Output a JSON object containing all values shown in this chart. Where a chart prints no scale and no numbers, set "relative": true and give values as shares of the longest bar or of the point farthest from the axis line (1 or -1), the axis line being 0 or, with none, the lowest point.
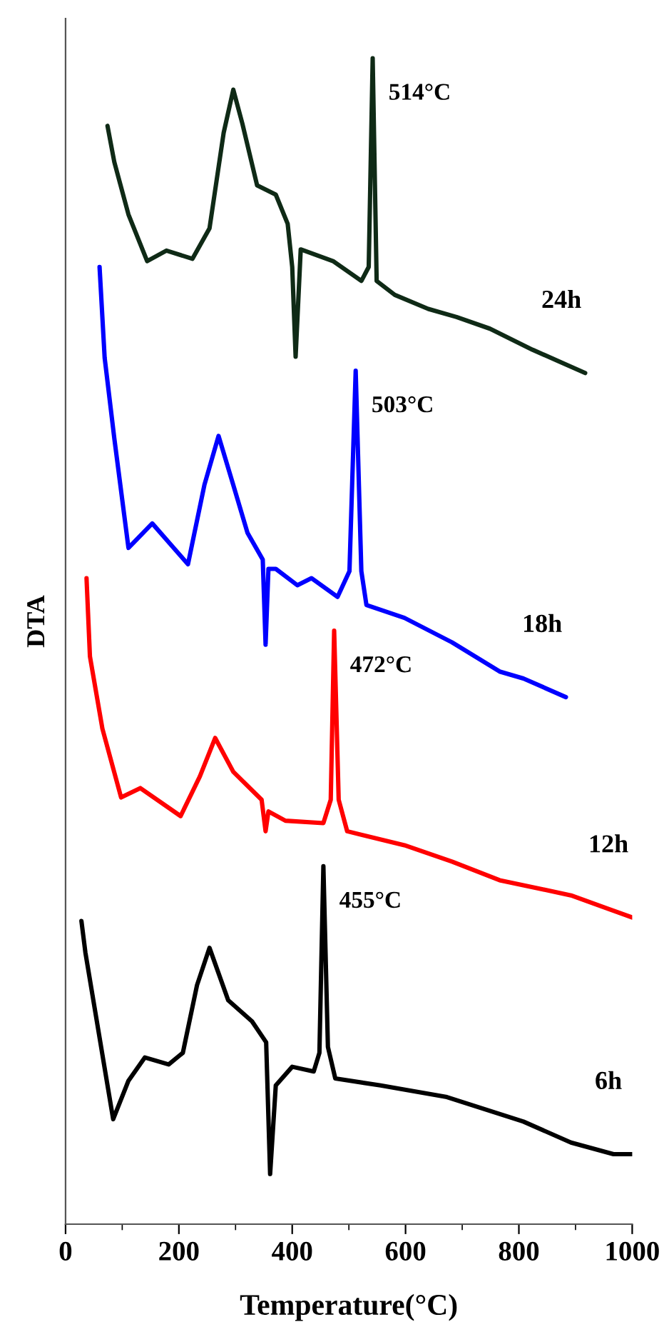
{
  "chart_data": {
    "type": "line",
    "relative": true,
    "xlabel": "Temperature(°C)",
    "ylabel": "DTA",
    "xlim": [
      0,
      1000
    ],
    "xticks": [
      0,
      {
        "value": 100,
        "label": null
      },
      200,
      {
        "value": 300,
        "label": null
      },
      400,
      {
        "value": 500,
        "label": null
      },
      600,
      {
        "value": 700,
        "label": null
      },
      800,
      {
        "value": 900,
        "label": null
      },
      1000
    ],
    "grid": false,
    "legend": false,
    "marker": "none",
    "line_style": "solid",
    "tick_labels": "x",
    "series": [
      {
        "name": "24h",
        "color": "#0f2a16",
        "x": [
          74,
          86,
          111,
          144,
          178,
          224,
          254,
          279,
          296,
          312,
          338,
          371,
          392,
          400,
          406,
          415,
          472,
          522,
          535,
          542,
          549,
          581,
          640,
          690,
          749,
          824,
          917
        ],
        "values": [
          0.942,
          0.911,
          0.866,
          0.826,
          0.835,
          0.828,
          0.854,
          0.936,
          0.973,
          0.944,
          0.891,
          0.883,
          0.858,
          0.821,
          0.744,
          0.836,
          0.826,
          0.809,
          0.821,
          1.0,
          0.809,
          0.797,
          0.785,
          0.778,
          0.768,
          0.75,
          0.73
        ]
      },
      {
        "name": "18h",
        "color": "#0000ff",
        "x": [
          60,
          69,
          86,
          111,
          153,
          216,
          245,
          270,
          296,
          321,
          348,
          353,
          358,
          371,
          409,
          434,
          480,
          501,
          512,
          522,
          531,
          598,
          682,
          766,
          808,
          883
        ],
        "values": [
          0.821,
          0.743,
          0.674,
          0.58,
          0.601,
          0.566,
          0.634,
          0.676,
          0.634,
          0.593,
          0.57,
          0.497,
          0.562,
          0.562,
          0.548,
          0.554,
          0.538,
          0.56,
          0.732,
          0.56,
          0.531,
          0.52,
          0.499,
          0.474,
          0.468,
          0.452
        ]
      },
      {
        "name": "12h",
        "color": "#ff0000",
        "x": [
          37,
          43,
          65,
          98,
          132,
          203,
          237,
          264,
          296,
          346,
          353,
          358,
          388,
          455,
          468,
          474,
          482,
          497,
          598,
          682,
          766,
          892,
          1000
        ],
        "values": [
          0.554,
          0.487,
          0.425,
          0.366,
          0.374,
          0.35,
          0.384,
          0.417,
          0.388,
          0.364,
          0.337,
          0.354,
          0.346,
          0.344,
          0.364,
          0.509,
          0.364,
          0.337,
          0.325,
          0.311,
          0.295,
          0.282,
          0.263
        ]
      },
      {
        "name": "6h",
        "color": "#000000",
        "x": [
          28,
          35,
          84,
          111,
          140,
          182,
          207,
          232,
          254,
          287,
          329,
          354,
          361,
          371,
          400,
          438,
          448,
          455,
          463,
          476,
          556,
          673,
          808,
          892,
          967,
          1000
        ],
        "values": [
          0.26,
          0.233,
          0.09,
          0.123,
          0.143,
          0.137,
          0.147,
          0.205,
          0.237,
          0.192,
          0.174,
          0.156,
          0.043,
          0.119,
          0.135,
          0.131,
          0.147,
          0.307,
          0.152,
          0.125,
          0.119,
          0.109,
          0.088,
          0.07,
          0.06,
          0.06
        ]
      }
    ],
    "annotations": [
      {
        "text": "514°C",
        "x": 542,
        "y": 1.0
      },
      {
        "text": "503°C",
        "x": 512,
        "y": 0.732
      },
      {
        "text": "472°C",
        "x": 474,
        "y": 0.509
      },
      {
        "text": "455°C",
        "x": 455,
        "y": 0.307
      }
    ]
  }
}
